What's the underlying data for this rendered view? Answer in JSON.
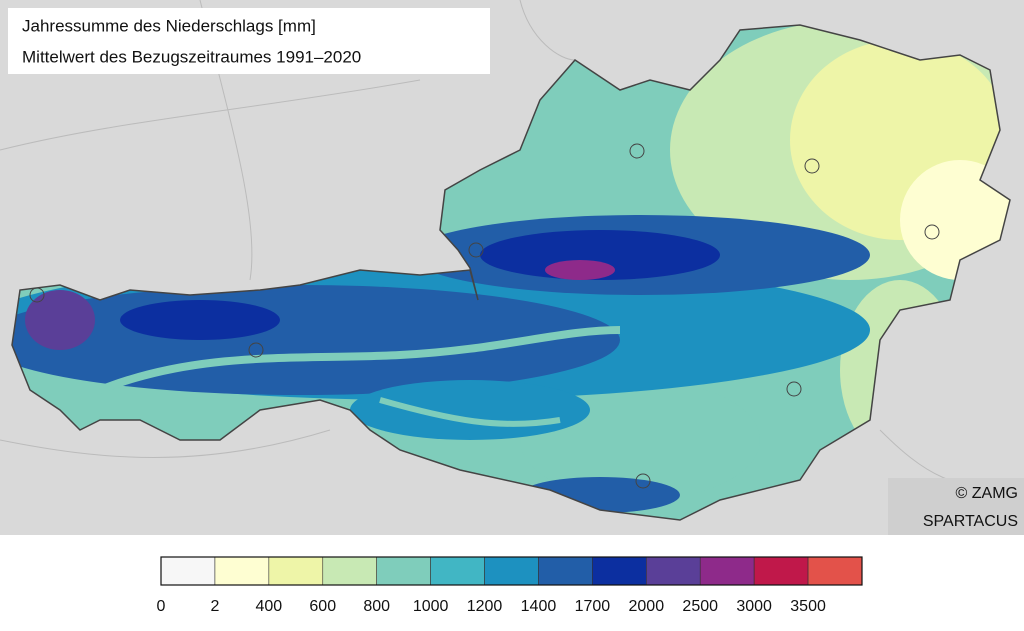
{
  "header": {
    "title": "Jahressumme des Niederschlags [mm]",
    "subtitle": "Mittelwert des Bezugszeitraumes 1991–2020"
  },
  "credits": {
    "copyright": "© ZAMG",
    "source": "SPARTACUS"
  },
  "legend": {
    "colors": [
      "#f7f7f7",
      "#fefed2",
      "#eef5a8",
      "#c8e9b4",
      "#7fcdbb",
      "#41b6c4",
      "#1d91c0",
      "#225ea8",
      "#0c2fa0",
      "#5a3f98",
      "#8e2a8a",
      "#c0184a",
      "#e3524a"
    ],
    "labels": [
      "0",
      "2",
      "400",
      "600",
      "800",
      "1000",
      "1200",
      "1400",
      "1700",
      "2000",
      "2500",
      "3000",
      "3500"
    ]
  }
}
